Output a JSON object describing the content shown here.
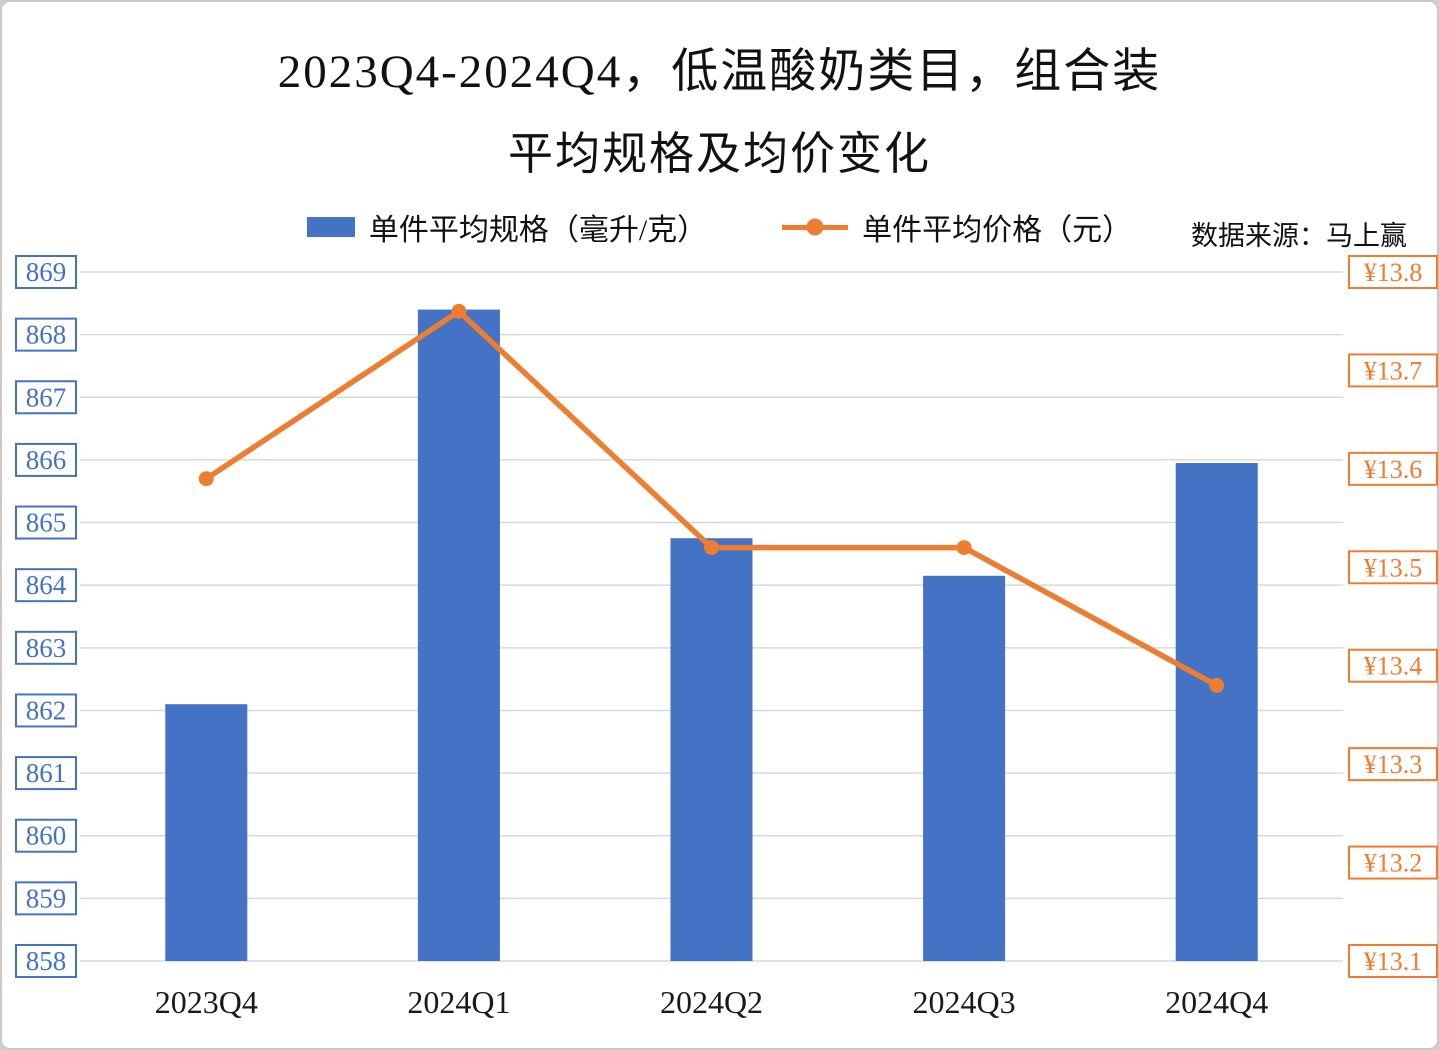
{
  "title": {
    "line1": "2023Q4-2024Q4，低温酸奶类目，组合装",
    "line2": "平均规格及均价变化"
  },
  "legend": {
    "bar_label": "单件平均规格（毫升/克）",
    "line_label": "单件平均价格（元）"
  },
  "source": "数据来源：马上赢",
  "colors": {
    "bar": "#4472C4",
    "line": "#ED7D31",
    "grid": "#D9D9D9",
    "axis_text_left": "#4472C4",
    "axis_text_right": "#ED7D31",
    "category_text": "#1a1a1a"
  },
  "chart_data": {
    "type": "combo",
    "categories": [
      "2023Q4",
      "2024Q1",
      "2024Q2",
      "2024Q3",
      "2024Q4"
    ],
    "series": [
      {
        "name": "单件平均规格（毫升/克）",
        "type": "bar",
        "axis": "left",
        "values": [
          862.1,
          868.4,
          864.75,
          864.15,
          865.95
        ]
      },
      {
        "name": "单件平均价格（元）",
        "type": "line",
        "axis": "right",
        "values": [
          13.59,
          13.76,
          13.52,
          13.52,
          13.38
        ]
      }
    ],
    "left_axis": {
      "min": 858,
      "max": 869,
      "step": 1,
      "ticks": [
        869,
        868,
        867,
        866,
        865,
        864,
        863,
        862,
        861,
        860,
        859,
        858
      ]
    },
    "right_axis": {
      "min": 13.1,
      "max": 13.8,
      "step": 0.1,
      "ticks": [
        13.8,
        13.7,
        13.6,
        13.5,
        13.4,
        13.3,
        13.2,
        13.1
      ],
      "tick_labels": [
        "¥13.8",
        "¥13.7",
        "¥13.6",
        "¥13.5",
        "¥13.4",
        "¥13.3",
        "¥13.2",
        "¥13.1"
      ]
    },
    "grid": true,
    "legend_position": "top"
  }
}
